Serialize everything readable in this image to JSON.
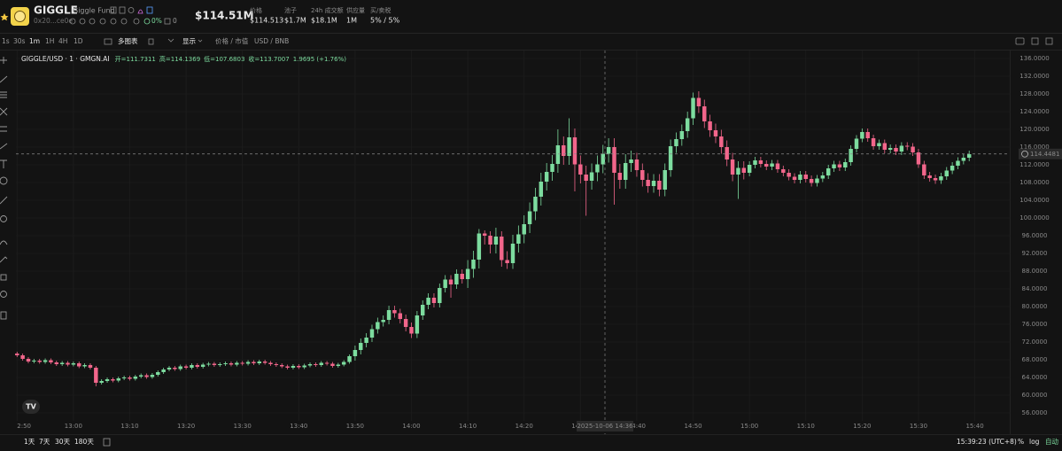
{
  "header": {
    "symbol": "GIGGLE",
    "name": "Giggle Fund",
    "address": "0x20...ce0e",
    "holders_pct": "0%",
    "count": "0",
    "market_cap": "$114.51M",
    "stats": [
      {
        "label": "价格",
        "value": "$114.513"
      },
      {
        "label": "池子",
        "value": "$1.7M"
      },
      {
        "label": "24h 成交额",
        "value": "$18.1M"
      },
      {
        "label": "供应量",
        "value": "1M"
      },
      {
        "label": "买/卖税",
        "value": "5% / 5%"
      }
    ]
  },
  "toolbar": {
    "intervals": [
      "1s",
      "30s",
      "1m",
      "1H",
      "4H",
      "1D"
    ],
    "items": [
      "多图表",
      "显示",
      "价格 / 市值",
      "USD / BNB"
    ]
  },
  "footer": {
    "ranges": [
      "1天",
      "7天",
      "30天",
      "180天"
    ],
    "clock": "15:39:23 (UTC+8)",
    "options": [
      "%",
      "log",
      "自动"
    ]
  },
  "chart_data": {
    "type": "candlestick",
    "title": "GIGGLE/USD · 1 · GMGN.AI",
    "ohlc_legend": [
      "开=111.7311",
      "高=114.1369",
      "低=107.6803",
      "收=113.7007",
      "1.9695 (+1.76%)"
    ],
    "crosshair_label": "2025-10-06 14:36",
    "last_price": 114.4481,
    "up_color": "#7ddc9f",
    "down_color": "#f2668b",
    "grid": true,
    "xlim": [
      -0.2,
      176.2
    ],
    "ylim": [
      54.2,
      137.8
    ],
    "xticks": [
      {
        "value": 0,
        "label": "2:50"
      },
      {
        "value": 10,
        "label": "13:00"
      },
      {
        "value": 20,
        "label": "13:10"
      },
      {
        "value": 30,
        "label": "13:20"
      },
      {
        "value": 40,
        "label": "13:30"
      },
      {
        "value": 50,
        "label": "13:40"
      },
      {
        "value": 60,
        "label": "13:50"
      },
      {
        "value": 70,
        "label": "14:00"
      },
      {
        "value": 80,
        "label": "14:10"
      },
      {
        "value": 90,
        "label": "14:20"
      },
      {
        "value": 100,
        "label": "14:30"
      },
      {
        "value": 110,
        "label": "14:40"
      },
      {
        "value": 120,
        "label": "14:50"
      },
      {
        "value": 130,
        "label": "15:00"
      },
      {
        "value": 140,
        "label": "15:10"
      },
      {
        "value": 150,
        "label": "15:20"
      },
      {
        "value": 160,
        "label": "15:30"
      },
      {
        "value": 170,
        "label": "15:40"
      }
    ],
    "yticks": [
      {
        "value": 56,
        "label": "56.0000"
      },
      {
        "value": 60,
        "label": "60.0000"
      },
      {
        "value": 64,
        "label": "64.0000"
      },
      {
        "value": 68,
        "label": "68.0000"
      },
      {
        "value": 72,
        "label": "72.0000"
      },
      {
        "value": 76,
        "label": "76.0000"
      },
      {
        "value": 80,
        "label": "80.0000"
      },
      {
        "value": 84,
        "label": "84.0000"
      },
      {
        "value": 88,
        "label": "88.0000"
      },
      {
        "value": 92,
        "label": "92.0000"
      },
      {
        "value": 96,
        "label": "96.0000"
      },
      {
        "value": 100,
        "label": "100.0000"
      },
      {
        "value": 104,
        "label": "104.0000"
      },
      {
        "value": 108,
        "label": "108.0000"
      },
      {
        "value": 112,
        "label": "112.0000"
      },
      {
        "value": 116,
        "label": "116.0000"
      },
      {
        "value": 120,
        "label": "120.0000"
      },
      {
        "value": 124,
        "label": "124.0000"
      },
      {
        "value": 128,
        "label": "128.0000"
      },
      {
        "value": 132,
        "label": "132.0000"
      },
      {
        "value": 136,
        "label": "136.0000"
      }
    ],
    "open": [
      69.4,
      69.0,
      68.2,
      67.6,
      67.8,
      67.5,
      67.9,
      67.4,
      67.0,
      67.3,
      66.9,
      67.2,
      66.5,
      66.8,
      66.2,
      62.8,
      63.2,
      63.6,
      63.3,
      63.8,
      64.0,
      63.7,
      64.2,
      64.5,
      64.1,
      64.6,
      65.2,
      65.8,
      66.2,
      65.9,
      66.5,
      66.2,
      66.8,
      66.4,
      66.9,
      67.1,
      66.8,
      67.0,
      67.2,
      66.9,
      67.3,
      67.1,
      67.5,
      67.2,
      67.6,
      67.3,
      67.0,
      66.8,
      66.5,
      66.2,
      66.6,
      66.3,
      66.7,
      67.0,
      66.8,
      67.3,
      67.1,
      66.6,
      66.9,
      67.5,
      68.8,
      70.2,
      71.8,
      73.0,
      74.9,
      76.5,
      77.0,
      79.2,
      78.5,
      77.2,
      75.4,
      73.9,
      78.0,
      80.4,
      82.0,
      80.8,
      84.2,
      86.1,
      85.0,
      87.4,
      86.2,
      88.5,
      90.6,
      96.5,
      96.0,
      94.0,
      95.8,
      90.5,
      89.8,
      94.2,
      96.3,
      98.6,
      101.5,
      104.8,
      108.2,
      110.4,
      112.2,
      116.4,
      114.0,
      118.2,
      112.1,
      109.8,
      108.4,
      110.3,
      112.1,
      114.5,
      116.0,
      110.2,
      108.6,
      112.4,
      113.2,
      110.8,
      108.6,
      107.2,
      108.4,
      106.4,
      110.8,
      116.2,
      117.8,
      119.6,
      122.5,
      127.1,
      125.2,
      121.8,
      119.8,
      118.4,
      116.0,
      113.2,
      109.8,
      111.3,
      110.2,
      112.0,
      113.0,
      112.2,
      111.6,
      112.3,
      111.0,
      110.2,
      109.3,
      108.6,
      109.8,
      108.8,
      107.9,
      108.9,
      109.6,
      111.2,
      112.1,
      111.4,
      112.6,
      115.6,
      117.9,
      119.4,
      118.0,
      116.2,
      116.9,
      115.4,
      115.8,
      115.0,
      116.3,
      116.1,
      114.8,
      112.1,
      109.6,
      109.0,
      108.5,
      109.4,
      110.7,
      111.8,
      112.9,
      113.6
    ],
    "high": [
      69.8,
      69.4,
      68.6,
      68.2,
      68.2,
      68.3,
      68.3,
      67.8,
      67.7,
      67.7,
      67.6,
      67.6,
      67.2,
      67.2,
      66.6,
      63.6,
      64.0,
      64.0,
      64.2,
      64.4,
      64.4,
      64.6,
      64.9,
      64.9,
      65.0,
      65.6,
      66.2,
      66.6,
      66.6,
      66.9,
      66.9,
      67.2,
      67.2,
      67.3,
      67.5,
      67.5,
      67.4,
      67.6,
      67.6,
      67.7,
      67.7,
      67.9,
      67.9,
      68.0,
      68.0,
      67.7,
      67.4,
      67.2,
      66.9,
      67.0,
      67.0,
      67.1,
      67.4,
      67.4,
      67.7,
      67.7,
      67.5,
      67.3,
      67.9,
      69.2,
      71.2,
      72.8,
      74.0,
      75.9,
      77.5,
      78.0,
      80.2,
      80.2,
      79.5,
      78.2,
      76.4,
      79.0,
      81.4,
      83.0,
      83.0,
      85.2,
      87.1,
      87.1,
      88.4,
      88.4,
      90.5,
      92.6,
      97.5,
      97.2,
      97.0,
      97.8,
      97.0,
      92.5,
      96.2,
      98.3,
      100.6,
      103.5,
      106.8,
      110.2,
      112.4,
      114.2,
      120.0,
      118.4,
      122.5,
      120.2,
      114.1,
      111.8,
      112.3,
      114.1,
      116.5,
      118.0,
      118.0,
      112.2,
      114.4,
      115.2,
      114.7,
      112.3,
      110.1,
      109.9,
      109.9,
      112.3,
      117.7,
      119.3,
      121.1,
      124.0,
      128.3,
      128.6,
      126.7,
      123.3,
      121.3,
      119.9,
      117.5,
      114.7,
      112.8,
      112.8,
      112.8,
      113.8,
      113.8,
      113.0,
      113.1,
      113.1,
      111.8,
      111.0,
      110.1,
      110.6,
      110.6,
      109.6,
      109.7,
      110.4,
      112.0,
      112.9,
      112.9,
      113.4,
      116.4,
      118.7,
      120.2,
      120.2,
      118.8,
      117.7,
      117.7,
      116.6,
      116.6,
      117.1,
      117.1,
      116.9,
      115.6,
      112.9,
      110.4,
      109.8,
      110.2,
      111.5,
      112.6,
      113.7,
      114.4,
      115.2
    ],
    "low": [
      68.6,
      67.8,
      67.2,
      67.2,
      67.1,
      67.1,
      67.0,
      66.6,
      66.6,
      66.5,
      66.5,
      66.1,
      66.1,
      65.8,
      62.0,
      62.4,
      62.8,
      62.9,
      62.9,
      63.4,
      63.3,
      63.3,
      63.8,
      63.7,
      63.7,
      64.2,
      64.8,
      65.4,
      65.5,
      65.5,
      65.8,
      65.8,
      66.0,
      66.0,
      66.5,
      66.4,
      66.4,
      66.6,
      66.5,
      66.5,
      66.7,
      66.7,
      66.8,
      66.8,
      66.9,
      66.6,
      66.4,
      66.1,
      65.8,
      65.8,
      65.9,
      65.9,
      66.3,
      66.4,
      66.4,
      66.7,
      66.2,
      66.2,
      66.5,
      67.1,
      67.8,
      69.2,
      70.8,
      72.0,
      73.9,
      75.5,
      76.0,
      77.5,
      76.2,
      74.4,
      72.9,
      72.9,
      77.0,
      79.4,
      79.8,
      79.8,
      83.2,
      82.0,
      84.0,
      85.2,
      84.2,
      86.5,
      88.6,
      94.0,
      92.0,
      92.0,
      89.0,
      88.5,
      88.5,
      92.2,
      94.3,
      96.6,
      99.5,
      102.8,
      106.2,
      108.4,
      110.2,
      112.0,
      112.0,
      106.0,
      107.8,
      100.5,
      106.4,
      108.3,
      110.1,
      112.5,
      103.0,
      106.6,
      106.6,
      110.4,
      109.3,
      107.1,
      105.7,
      105.7,
      104.9,
      104.9,
      109.3,
      114.7,
      116.3,
      118.1,
      121.0,
      123.7,
      120.3,
      118.3,
      116.9,
      114.5,
      111.7,
      108.3,
      104.3,
      108.7,
      109.4,
      111.2,
      111.4,
      110.8,
      110.8,
      110.2,
      109.4,
      108.5,
      107.8,
      107.8,
      108.0,
      107.1,
      107.1,
      108.1,
      108.8,
      110.4,
      110.6,
      110.6,
      111.8,
      114.8,
      117.1,
      117.2,
      115.4,
      115.4,
      114.6,
      114.6,
      114.2,
      114.2,
      115.3,
      114.0,
      111.3,
      108.8,
      108.2,
      107.7,
      107.7,
      108.6,
      109.9,
      111.0,
      112.1,
      112.8
    ],
    "close": [
      69.0,
      68.2,
      67.6,
      67.8,
      67.5,
      67.9,
      67.4,
      67.0,
      67.3,
      66.9,
      67.2,
      66.5,
      66.8,
      66.2,
      62.8,
      63.2,
      63.6,
      63.3,
      63.8,
      64.0,
      63.7,
      64.2,
      64.5,
      64.1,
      64.6,
      65.2,
      65.8,
      66.2,
      65.9,
      66.5,
      66.2,
      66.8,
      66.4,
      66.9,
      67.1,
      66.8,
      67.0,
      67.2,
      66.9,
      67.3,
      67.1,
      67.5,
      67.2,
      67.6,
      67.3,
      67.0,
      66.8,
      66.5,
      66.2,
      66.6,
      66.3,
      66.7,
      67.0,
      66.8,
      67.3,
      67.1,
      66.6,
      66.9,
      67.5,
      68.8,
      70.2,
      71.8,
      73.0,
      74.9,
      76.5,
      77.0,
      79.2,
      78.5,
      77.2,
      75.4,
      73.9,
      78.0,
      80.4,
      82.0,
      80.8,
      84.2,
      86.1,
      85.0,
      87.4,
      86.2,
      88.5,
      90.6,
      96.5,
      96.0,
      94.0,
      95.8,
      90.5,
      89.8,
      94.2,
      96.3,
      98.6,
      101.5,
      104.8,
      108.2,
      110.4,
      112.2,
      116.4,
      114.0,
      118.2,
      112.1,
      109.8,
      108.4,
      110.3,
      112.1,
      114.5,
      116.0,
      110.2,
      108.6,
      112.4,
      113.2,
      110.8,
      108.6,
      107.2,
      108.4,
      106.4,
      110.8,
      116.2,
      117.8,
      119.6,
      122.5,
      127.1,
      125.2,
      121.8,
      119.8,
      118.4,
      116.0,
      113.2,
      109.8,
      111.3,
      110.2,
      112.0,
      113.0,
      112.2,
      111.6,
      112.3,
      111.0,
      110.2,
      109.3,
      108.6,
      109.8,
      108.8,
      107.9,
      108.9,
      109.6,
      111.2,
      112.1,
      111.4,
      112.6,
      115.6,
      117.9,
      119.4,
      118.0,
      116.2,
      116.9,
      115.4,
      115.8,
      115.0,
      116.3,
      116.1,
      114.8,
      112.1,
      109.6,
      109.0,
      108.5,
      109.4,
      110.7,
      111.8,
      112.9,
      113.6,
      114.4
    ]
  }
}
